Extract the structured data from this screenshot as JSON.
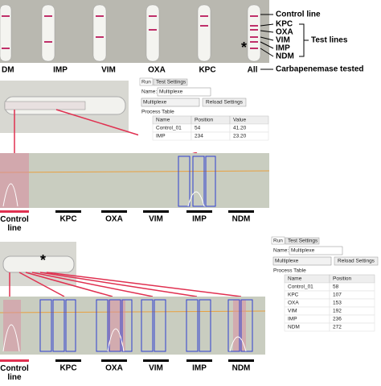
{
  "panel_a": {
    "strip_labels": [
      "DM",
      "IMP",
      "VIM",
      "OXA",
      "KPC",
      "All"
    ],
    "asterisk": "*",
    "legend": {
      "control": "Control line",
      "tests": [
        "KPC",
        "OXA",
        "VIM",
        "IMP",
        "NDM"
      ],
      "test_lines": "Test lines",
      "tested": "Carbapenemase tested"
    }
  },
  "panel_b": {
    "software": {
      "tabs": [
        "Run",
        "Test Settings"
      ],
      "name_label": "Name:",
      "name_value": "Multiplexe",
      "dropdown": "Multiplexe",
      "button": "Reload Settings",
      "table_title": "Process Table",
      "headers": [
        "Name",
        "Position",
        "Value"
      ],
      "rows": [
        [
          "Control_01",
          "54",
          "41.20"
        ],
        [
          "IMP",
          "234",
          "23.20"
        ]
      ]
    },
    "control": "Control line",
    "tests": [
      "KPC",
      "OXA",
      "VIM",
      "IMP",
      "NDM"
    ]
  },
  "panel_c": {
    "asterisk": "*",
    "software": {
      "tabs": [
        "Run",
        "Test Settings"
      ],
      "name_label": "Name:",
      "name_value": "Multiplexe",
      "dropdown": "Multiplexe",
      "button": "Reload Settings",
      "table_title": "Process Table",
      "headers": [
        "Name",
        "Position"
      ],
      "rows": [
        [
          "Control_01",
          "58"
        ],
        [
          "KPC",
          "107"
        ],
        [
          "OXA",
          "153"
        ],
        [
          "VIM",
          "192"
        ],
        [
          "IMP",
          "236"
        ],
        [
          "NDM",
          "272"
        ]
      ]
    },
    "control": "Control line",
    "tests": [
      "KPC",
      "OXA",
      "VIM",
      "IMP",
      "NDM"
    ]
  }
}
